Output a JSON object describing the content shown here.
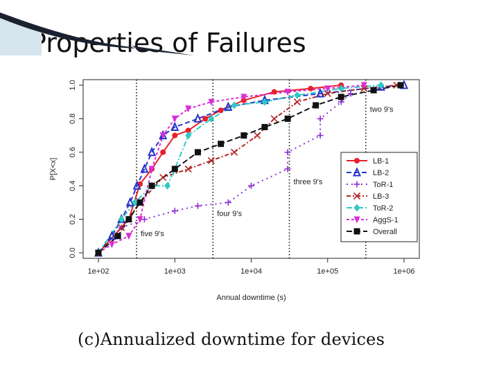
{
  "slide": {
    "title": "Properties of Failures",
    "caption": "(c)Annualized downtime for devices"
  },
  "chart_data": {
    "type": "line",
    "xlabel": "Annual downtime (s)",
    "ylabel": "P[X<x]",
    "x_scale": "log",
    "xlim": [
      100,
      1000000
    ],
    "ylim": [
      0,
      1
    ],
    "x_ticks": [
      "1e+02",
      "1e+03",
      "1e+04",
      "1e+05",
      "1e+06"
    ],
    "y_ticks": [
      "0.0",
      "0.2",
      "0.4",
      "0.6",
      "0.8",
      "1.0"
    ],
    "legend_position": "center-right",
    "nines": [
      {
        "label": "five 9's",
        "x": 315
      },
      {
        "label": "four 9's",
        "x": 3154
      },
      {
        "label": "three 9's",
        "x": 31536
      },
      {
        "label": "two 9's",
        "x": 315360
      }
    ],
    "series": [
      {
        "name": "LB-1",
        "color": "#e8202a",
        "dash": "",
        "marker": "circle",
        "x": [
          100,
          250,
          350,
          500,
          700,
          1000,
          1500,
          2500,
          4000,
          8000,
          20000,
          60000,
          150000
        ],
        "y": [
          0.0,
          0.2,
          0.41,
          0.5,
          0.6,
          0.7,
          0.73,
          0.8,
          0.85,
          0.91,
          0.96,
          0.98,
          1.0
        ]
      },
      {
        "name": "LB-2",
        "color": "#2633c9",
        "dash": "7,4",
        "marker": "triangle",
        "x": [
          100,
          150,
          200,
          260,
          320,
          400,
          500,
          700,
          1000,
          2000,
          5000,
          15000,
          80000,
          500000,
          1000000
        ],
        "y": [
          0.0,
          0.1,
          0.2,
          0.3,
          0.4,
          0.5,
          0.6,
          0.7,
          0.75,
          0.8,
          0.87,
          0.91,
          0.95,
          0.99,
          1.0
        ]
      },
      {
        "name": "ToR-1",
        "color": "#8b2fd1",
        "dash": "2,5",
        "marker": "plus",
        "x": [
          200,
          400,
          1000,
          2000,
          5000,
          10000,
          30000,
          30000,
          80000,
          80000,
          150000,
          200000
        ],
        "y": [
          0.15,
          0.2,
          0.25,
          0.28,
          0.3,
          0.4,
          0.5,
          0.6,
          0.7,
          0.8,
          0.9,
          0.95
        ]
      },
      {
        "name": "LB-3",
        "color": "#b02424",
        "dash": "6,3,2,3",
        "marker": "x",
        "x": [
          100,
          200,
          350,
          700,
          1500,
          3000,
          6000,
          12000,
          20000,
          40000,
          100000,
          300000,
          800000
        ],
        "y": [
          0.0,
          0.15,
          0.3,
          0.45,
          0.5,
          0.55,
          0.6,
          0.7,
          0.8,
          0.9,
          0.95,
          0.98,
          1.0
        ]
      },
      {
        "name": "ToR-2",
        "color": "#2ec9c2",
        "dash": "8,3,2,3",
        "marker": "diamond",
        "x": [
          100,
          200,
          300,
          500,
          800,
          1000,
          1500,
          3000,
          6000,
          15000,
          40000,
          150000,
          500000
        ],
        "y": [
          0.0,
          0.2,
          0.3,
          0.4,
          0.4,
          0.5,
          0.7,
          0.8,
          0.88,
          0.9,
          0.94,
          0.98,
          1.0
        ]
      },
      {
        "name": "AggS-1",
        "color": "#d92fd9",
        "dash": "4,3",
        "marker": "triangle-down",
        "x": [
          100,
          150,
          250,
          350,
          500,
          700,
          1000,
          1500,
          3000,
          8000,
          30000,
          100000,
          300000
        ],
        "y": [
          0.0,
          0.05,
          0.1,
          0.2,
          0.5,
          0.7,
          0.8,
          0.86,
          0.9,
          0.93,
          0.96,
          0.98,
          1.0
        ]
      },
      {
        "name": "Overall",
        "color": "#111111",
        "dash": "8,4",
        "marker": "square",
        "x": [
          100,
          180,
          250,
          350,
          500,
          1000,
          2000,
          4000,
          8000,
          15000,
          30000,
          70000,
          150000,
          400000,
          900000
        ],
        "y": [
          0.0,
          0.1,
          0.2,
          0.3,
          0.4,
          0.5,
          0.6,
          0.65,
          0.7,
          0.75,
          0.8,
          0.88,
          0.93,
          0.97,
          1.0
        ]
      }
    ]
  }
}
